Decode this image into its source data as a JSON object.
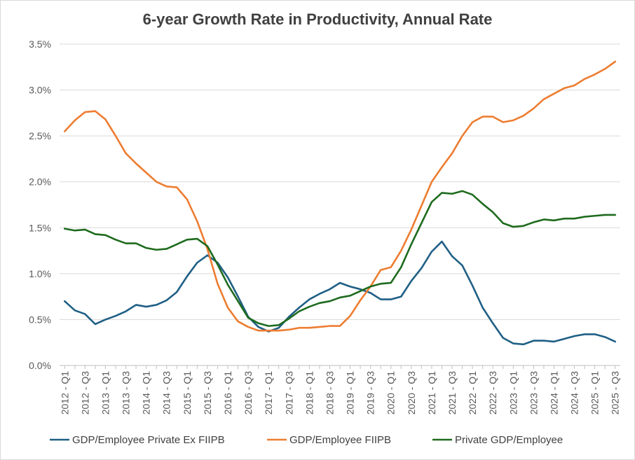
{
  "chart_data": {
    "type": "line",
    "title": "6-year Growth Rate in Productivity, Annual Rate",
    "xlabel": "",
    "ylabel": "",
    "ylim": [
      0,
      3.5
    ],
    "yticks": [
      "0.0%",
      "0.5%",
      "1.0%",
      "1.5%",
      "2.0%",
      "2.5%",
      "3.0%",
      "3.5%"
    ],
    "x": [
      "2012 - Q1",
      "2012 - Q2",
      "2012 - Q3",
      "2012 - Q4",
      "2013 - Q1",
      "2013 - Q2",
      "2013 - Q3",
      "2013 - Q4",
      "2014 - Q1",
      "2014 - Q2",
      "2014 - Q3",
      "2014 - Q4",
      "2015 - Q1",
      "2015 - Q2",
      "2015 - Q3",
      "2015 - Q4",
      "2016 - Q1",
      "2016 - Q2",
      "2016 - Q3",
      "2016 - Q4",
      "2017 - Q1",
      "2017 - Q2",
      "2017 - Q3",
      "2017 - Q4",
      "2018 - Q1",
      "2018 - Q2",
      "2018 - Q3",
      "2018 - Q4",
      "2019 - Q1",
      "2019 - Q2",
      "2019 - Q3",
      "2019 - Q4",
      "2020 - Q1",
      "2020 - Q2",
      "2020 - Q3",
      "2020 - Q4",
      "2021 - Q1",
      "2021 - Q2",
      "2021 - Q3",
      "2021 - Q4",
      "2022 - Q1",
      "2022 - Q2",
      "2022 - Q3",
      "2022 - Q4",
      "2023 - Q1",
      "2023 - Q2",
      "2023 - Q3",
      "2023 - Q4",
      "2024 - Q1",
      "2024 - Q2",
      "2024 - Q3",
      "2024 - Q4",
      "2025 - Q1",
      "2025 - Q2",
      "2025 - Q3"
    ],
    "xtick_labels": [
      "2012 - Q1",
      "2012 - Q3",
      "2013 - Q1",
      "2013 - Q3",
      "2014 - Q1",
      "2014 - Q3",
      "2015 - Q1",
      "2015 - Q3",
      "2016 - Q1",
      "2016 - Q3",
      "2017 - Q1",
      "2017 - Q3",
      "2018 - Q1",
      "2018 - Q3",
      "2019 - Q1",
      "2019 - Q3",
      "2020 - Q1",
      "2020 - Q3",
      "2021 - Q1",
      "2021 - Q3",
      "2022 - Q1",
      "2022 - Q3",
      "2023 - Q1",
      "2023 - Q3",
      "2024 - Q1",
      "2024 - Q3",
      "2025 - Q1",
      "2025 - Q3"
    ],
    "grid": true,
    "legend_position": "bottom",
    "series": [
      {
        "name": "GDP/Employee Private Ex FIIPB",
        "color": "#1f5f85",
        "values": [
          0.7,
          0.6,
          0.56,
          0.45,
          0.5,
          0.54,
          0.59,
          0.66,
          0.64,
          0.66,
          0.71,
          0.8,
          0.97,
          1.12,
          1.2,
          1.12,
          0.96,
          0.75,
          0.53,
          0.42,
          0.37,
          0.41,
          0.53,
          0.63,
          0.72,
          0.78,
          0.83,
          0.9,
          0.86,
          0.83,
          0.79,
          0.72,
          0.72,
          0.75,
          0.92,
          1.06,
          1.24,
          1.35,
          1.19,
          1.09,
          0.87,
          0.63,
          0.46,
          0.3,
          0.24,
          0.23,
          0.27,
          0.27,
          0.26,
          0.29,
          0.32,
          0.34,
          0.34,
          0.31,
          0.26
        ]
      },
      {
        "name": "GDP/Employee FIIPB",
        "color": "#ed7d31",
        "values": [
          2.55,
          2.67,
          2.76,
          2.77,
          2.68,
          2.5,
          2.31,
          2.2,
          2.1,
          2.0,
          1.95,
          1.94,
          1.81,
          1.57,
          1.27,
          0.89,
          0.63,
          0.48,
          0.42,
          0.38,
          0.38,
          0.38,
          0.39,
          0.41,
          0.41,
          0.42,
          0.43,
          0.43,
          0.54,
          0.71,
          0.86,
          1.04,
          1.07,
          1.25,
          1.48,
          1.74,
          2.0,
          2.16,
          2.31,
          2.5,
          2.65,
          2.71,
          2.71,
          2.65,
          2.67,
          2.72,
          2.8,
          2.9,
          2.96,
          3.02,
          3.05,
          3.12,
          3.17,
          3.23,
          3.31
        ]
      },
      {
        "name": "Private GDP/Employee",
        "color": "#1e6b1e",
        "values": [
          1.49,
          1.47,
          1.48,
          1.43,
          1.42,
          1.37,
          1.33,
          1.33,
          1.28,
          1.26,
          1.27,
          1.32,
          1.37,
          1.38,
          1.3,
          1.1,
          0.88,
          0.7,
          0.52,
          0.46,
          0.43,
          0.44,
          0.51,
          0.59,
          0.64,
          0.68,
          0.7,
          0.74,
          0.76,
          0.81,
          0.86,
          0.89,
          0.9,
          1.07,
          1.32,
          1.55,
          1.78,
          1.88,
          1.87,
          1.9,
          1.86,
          1.76,
          1.67,
          1.55,
          1.51,
          1.52,
          1.56,
          1.59,
          1.58,
          1.6,
          1.6,
          1.62,
          1.63,
          1.64,
          1.64
        ]
      }
    ]
  }
}
